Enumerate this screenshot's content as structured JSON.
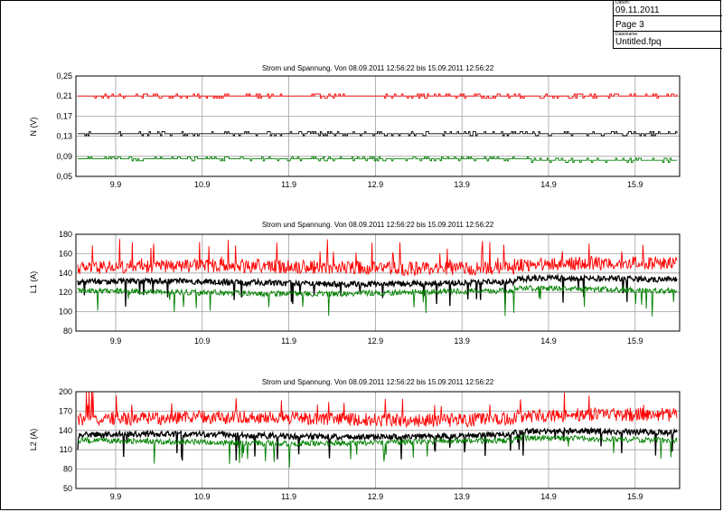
{
  "header": {
    "date_label": "Datum:",
    "date_value": "09.11.2011",
    "page_value": "Page 3",
    "filename_label": "Dateiname:",
    "filename_value": "Untitled.fpq"
  },
  "colors": {
    "red": "#ff0000",
    "black": "#000000",
    "green": "#008000",
    "grid": "#a0a0a0"
  },
  "chart_data": [
    {
      "type": "line",
      "title": "Strom und Spannung. Von 08.09.2011 12:56:22 bis 15.09.2011 12:56:22",
      "ylabel": "N (V)",
      "xlabel": "",
      "ylim": [
        0.05,
        0.25
      ],
      "yticks": [
        "0,25",
        "0,21",
        "0,17",
        "0,13",
        "0,09",
        "0,05"
      ],
      "xticks": [
        "9.9",
        "10.9",
        "11.9",
        "12.9",
        "13.9",
        "14.9",
        "15.9"
      ],
      "grid": true,
      "series": [
        {
          "name": "red",
          "color": "#ff0000",
          "base": 0.21,
          "step": true,
          "segments": [
            [
              0,
              7,
              0.21
            ],
            [
              7,
              7.25,
              0.215
            ]
          ]
        },
        {
          "name": "black",
          "color": "#000000",
          "base": 0.135,
          "step": true,
          "segments": [
            [
              0,
              7,
              0.135
            ]
          ]
        },
        {
          "name": "green",
          "color": "#008000",
          "base": 0.085,
          "step": true,
          "segments": [
            [
              0,
              5.3,
              0.085
            ],
            [
              5.3,
              7.25,
              0.082
            ]
          ]
        }
      ]
    },
    {
      "type": "line",
      "title": "Strom und Spannung. Von 08.09.2011 12:56:22 bis 15.09.2011 12:56:22",
      "ylabel": "L1 (A)",
      "xlabel": "",
      "ylim": [
        80,
        180
      ],
      "yticks": [
        "180",
        "160",
        "140",
        "120",
        "100",
        "80"
      ],
      "xticks": [
        "9.9",
        "10.9",
        "11.9",
        "12.9",
        "13.9",
        "14.9",
        "15.9"
      ],
      "grid": true,
      "series": [
        {
          "name": "red",
          "color": "#ff0000",
          "base": 146,
          "step": false,
          "segments": [
            [
              0,
              7.25,
              146
            ]
          ]
        },
        {
          "name": "black",
          "color": "#000000",
          "base": 130,
          "step": false,
          "segments": [
            [
              0,
              7.25,
              130
            ]
          ]
        },
        {
          "name": "green",
          "color": "#008000",
          "base": 120,
          "step": false,
          "segments": [
            [
              0,
              7.25,
              120
            ]
          ]
        }
      ]
    },
    {
      "type": "line",
      "title": "Strom und Spannung. Von 08.09.2011 12:56:22 bis 15.09.2011 12:56:22",
      "ylabel": "L2 (A)",
      "xlabel": "",
      "ylim": [
        50,
        200
      ],
      "yticks": [
        "200",
        "170",
        "140",
        "110",
        "80",
        "50"
      ],
      "xticks": [
        "9.9",
        "10.9",
        "11.9",
        "12.9",
        "13.9",
        "14.9",
        "15.9"
      ],
      "grid": true,
      "series": [
        {
          "name": "red",
          "color": "#ff0000",
          "base": 158,
          "step": false,
          "segments": [
            [
              0,
              7.25,
              158
            ]
          ]
        },
        {
          "name": "black",
          "color": "#000000",
          "base": 132,
          "step": false,
          "segments": [
            [
              0,
              7.25,
              132
            ]
          ]
        },
        {
          "name": "green",
          "color": "#008000",
          "base": 122,
          "step": false,
          "segments": [
            [
              0,
              7.25,
              122
            ]
          ]
        }
      ]
    }
  ]
}
